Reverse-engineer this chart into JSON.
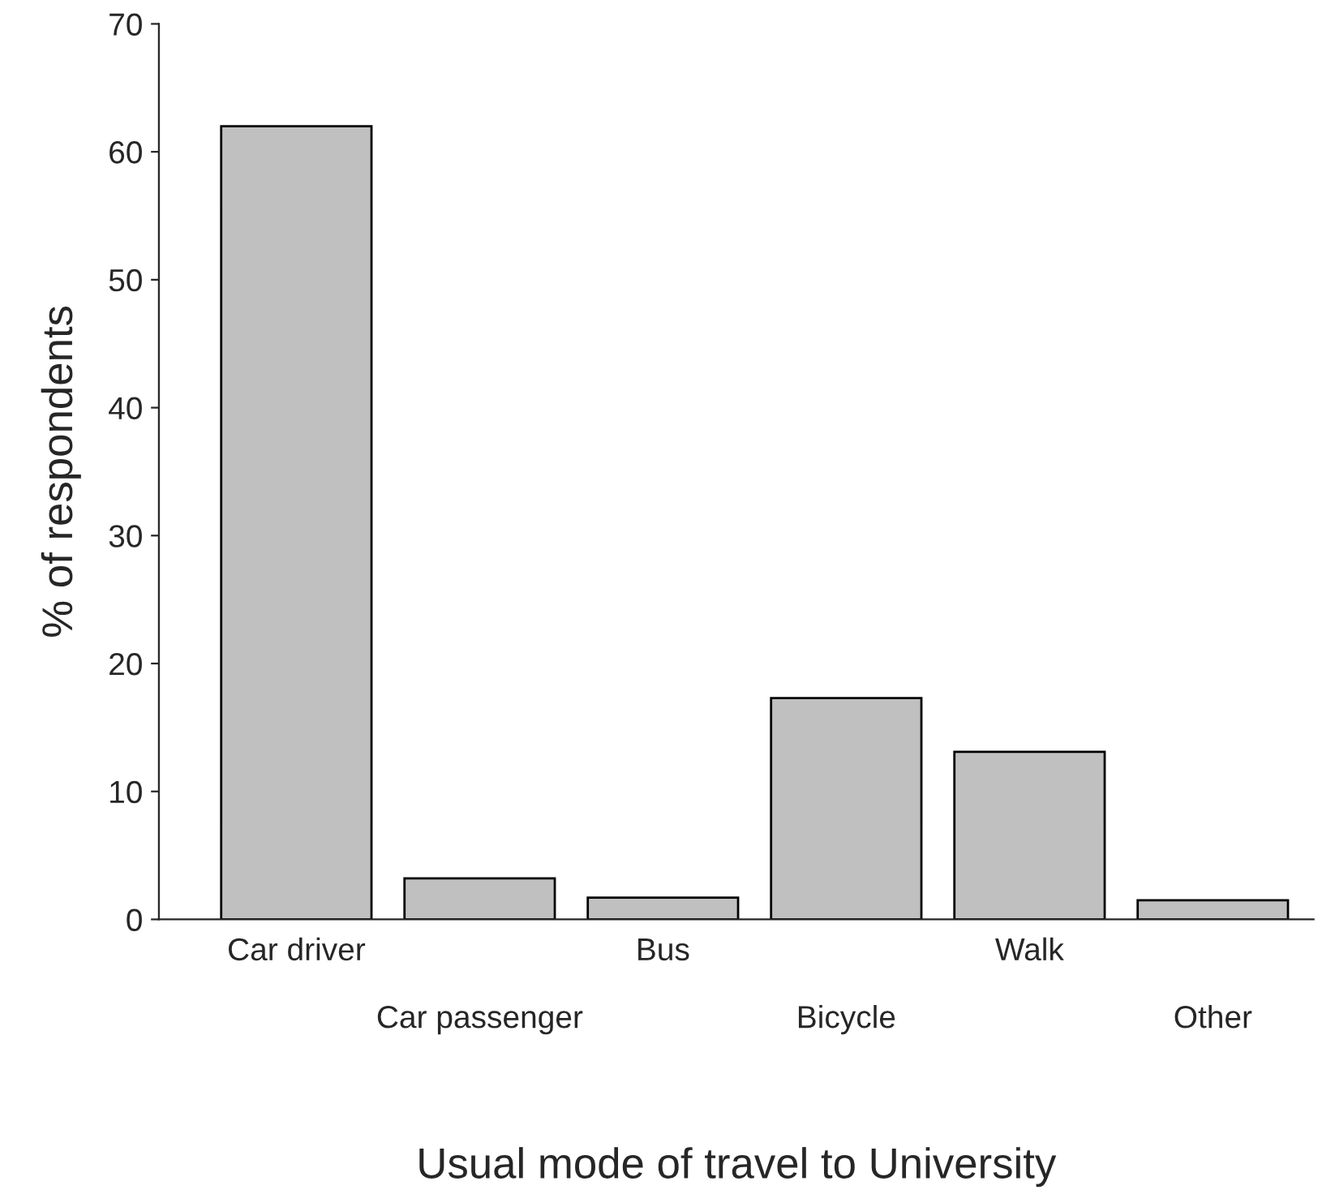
{
  "chart_data": {
    "type": "bar",
    "xlabel": "Usual mode of travel to University",
    "ylabel": "% of respondents",
    "categories": [
      "Car driver",
      "Car passenger",
      "Bus",
      "Bicycle",
      "Walk",
      "Other"
    ],
    "values": [
      62.0,
      3.2,
      1.7,
      17.3,
      13.1,
      1.5
    ],
    "color": "#c0c0c0",
    "ylim": [
      0,
      70
    ],
    "yticks": [
      0,
      10,
      20,
      30,
      40,
      50,
      60,
      70
    ],
    "grid": false,
    "legend": false
  }
}
